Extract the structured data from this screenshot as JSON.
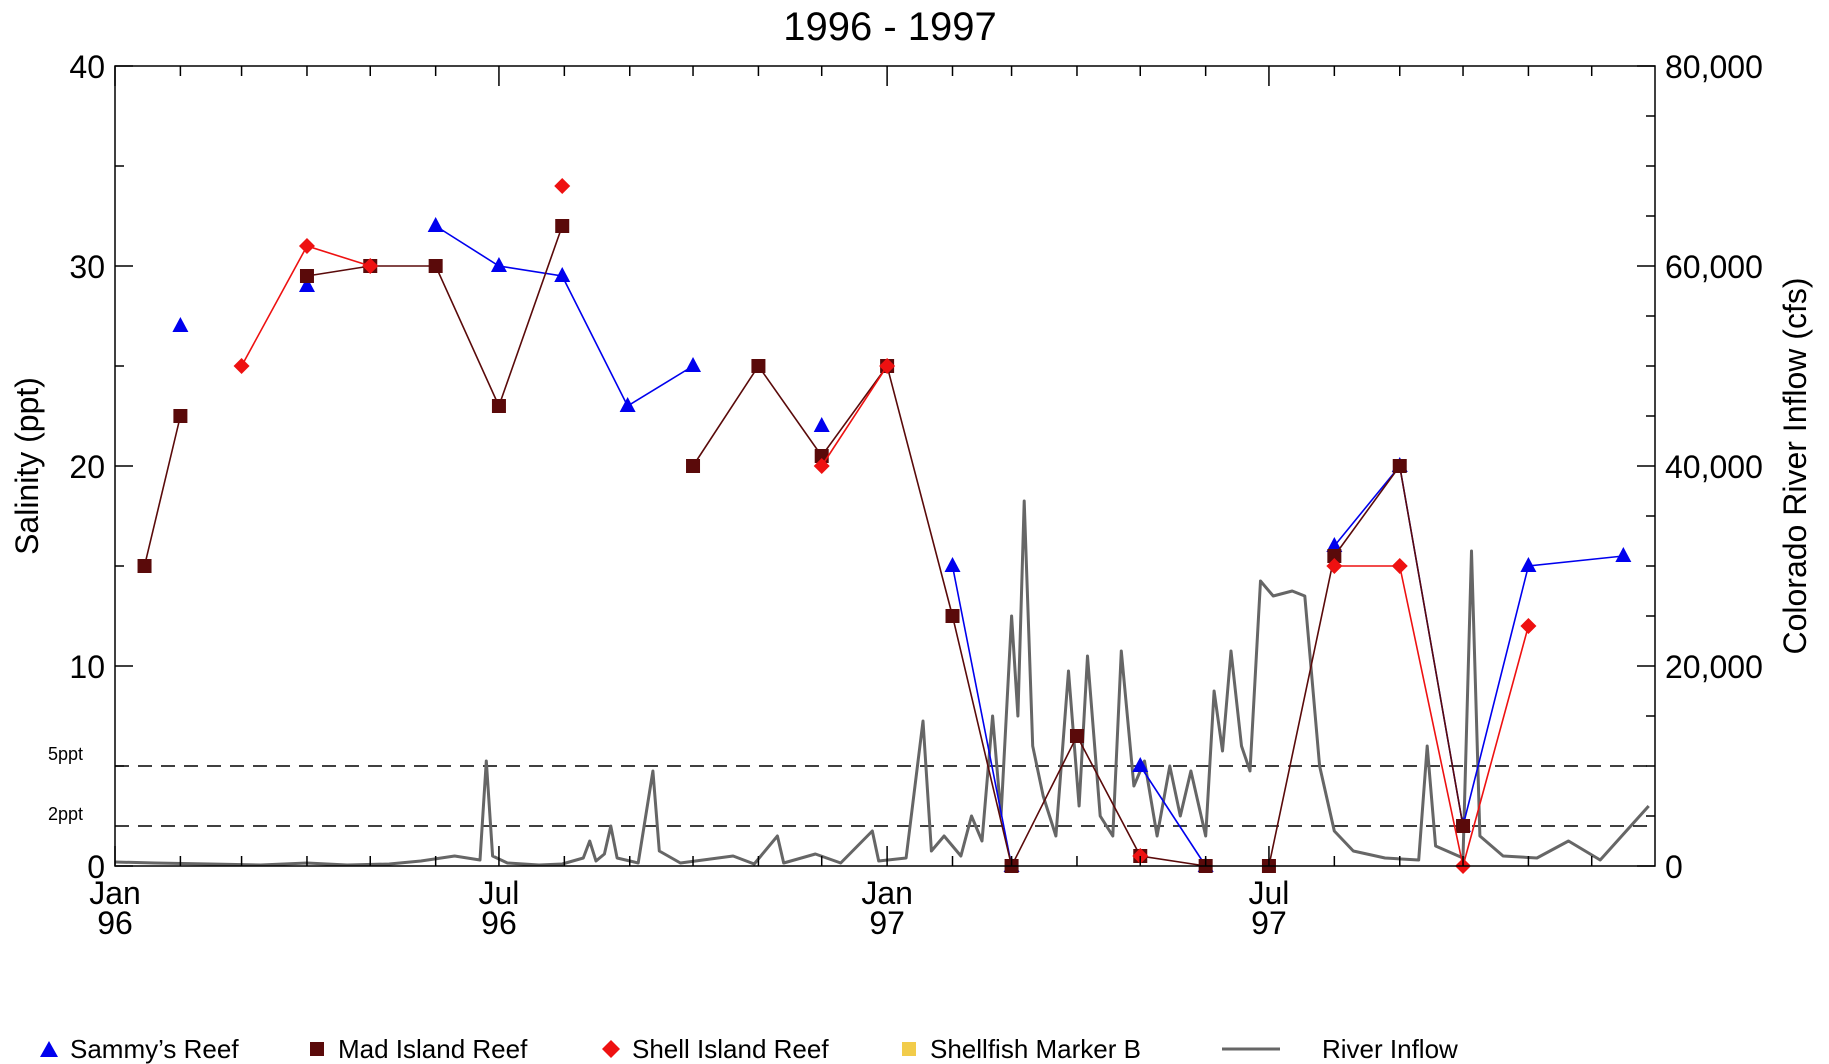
{
  "chart_data": {
    "type": "line",
    "title": "1996 - 1997",
    "ylabel": "Salinity (ppt)",
    "y2label": "Colorado River Inflow (cfs)",
    "ylim": [
      0,
      40
    ],
    "y2lim": [
      0,
      80000
    ],
    "xlim": [
      "1996-01-01",
      "1997-12-31"
    ],
    "y_ticks": [
      {
        "v": 0,
        "label": "0"
      },
      {
        "v": 10,
        "label": "10"
      },
      {
        "v": 20,
        "label": "20"
      },
      {
        "v": 30,
        "label": "30"
      },
      {
        "v": 40,
        "label": "40"
      }
    ],
    "y2_ticks": [
      {
        "v": 0,
        "label": "0"
      },
      {
        "v": 20000,
        "label": "20,000"
      },
      {
        "v": 40000,
        "label": "40,000"
      },
      {
        "v": 60000,
        "label": "60,000"
      },
      {
        "v": 80000,
        "label": "80,000"
      }
    ],
    "x_ticks": [
      {
        "date": "1996-01-01",
        "line1": "Jan",
        "line2": "96"
      },
      {
        "date": "1996-07-01",
        "line1": "Jul",
        "line2": "96"
      },
      {
        "date": "1997-01-01",
        "line1": "Jan",
        "line2": "97"
      },
      {
        "date": "1997-07-01",
        "line1": "Jul",
        "line2": "97"
      }
    ],
    "reference_lines": [
      {
        "label": "5ppt",
        "y": 5
      },
      {
        "label": "2ppt",
        "y": 2
      }
    ],
    "series": [
      {
        "name": "Sammy’s Reef",
        "marker": "triangle",
        "color": "#0000ee",
        "segments": [
          [
            {
              "x": "1996-02-01",
              "y": 27
            }
          ],
          [
            {
              "x": "1996-04-01",
              "y": 29
            }
          ],
          [
            {
              "x": "1996-06-01",
              "y": 32
            },
            {
              "x": "1996-07-01",
              "y": 30
            },
            {
              "x": "1996-07-31",
              "y": 29.5
            },
            {
              "x": "1996-08-31",
              "y": 23
            },
            {
              "x": "1996-10-01",
              "y": 25
            }
          ],
          [
            {
              "x": "1996-12-01",
              "y": 22
            }
          ],
          [
            {
              "x": "1997-02-01",
              "y": 15
            },
            {
              "x": "1997-03-01",
              "y": 0
            }
          ],
          [
            {
              "x": "1997-05-01",
              "y": 5
            },
            {
              "x": "1997-06-01",
              "y": 0
            }
          ],
          [
            {
              "x": "1997-08-01",
              "y": 16
            },
            {
              "x": "1997-09-01",
              "y": 20
            },
            {
              "x": "1997-10-01",
              "y": 2
            },
            {
              "x": "1997-11-01",
              "y": 15
            },
            {
              "x": "1997-12-16",
              "y": 15.5
            }
          ]
        ]
      },
      {
        "name": "Mad Island Reef",
        "marker": "square",
        "color": "#5a0a0a",
        "segments": [
          [
            {
              "x": "1996-01-15",
              "y": 15
            },
            {
              "x": "1996-02-01",
              "y": 22.5
            }
          ],
          [
            {
              "x": "1996-04-01",
              "y": 29.5
            },
            {
              "x": "1996-05-01",
              "y": 30
            },
            {
              "x": "1996-06-01",
              "y": 30
            },
            {
              "x": "1996-07-01",
              "y": 23
            },
            {
              "x": "1996-07-31",
              "y": 32
            }
          ],
          [
            {
              "x": "1996-10-01",
              "y": 20
            },
            {
              "x": "1996-11-01",
              "y": 25
            },
            {
              "x": "1996-12-01",
              "y": 20.5
            },
            {
              "x": "1997-01-01",
              "y": 25
            },
            {
              "x": "1997-02-01",
              "y": 12.5
            },
            {
              "x": "1997-03-01",
              "y": 0
            },
            {
              "x": "1997-04-01",
              "y": 6.5
            },
            {
              "x": "1997-05-01",
              "y": 0.5
            },
            {
              "x": "1997-06-01",
              "y": 0
            }
          ],
          [
            {
              "x": "1997-07-01",
              "y": 0
            },
            {
              "x": "1997-08-01",
              "y": 15.5
            },
            {
              "x": "1997-09-01",
              "y": 20
            },
            {
              "x": "1997-10-01",
              "y": 2
            }
          ]
        ]
      },
      {
        "name": "Shell Island Reef",
        "marker": "diamond",
        "color": "#ee1111",
        "segments": [
          [
            {
              "x": "1996-03-01",
              "y": 25
            },
            {
              "x": "1996-04-01",
              "y": 31
            },
            {
              "x": "1996-05-01",
              "y": 30
            }
          ],
          [
            {
              "x": "1996-07-31",
              "y": 34
            }
          ],
          [
            {
              "x": "1996-12-01",
              "y": 20
            },
            {
              "x": "1997-01-01",
              "y": 25
            }
          ],
          [
            {
              "x": "1997-05-01",
              "y": 0.5
            }
          ],
          [
            {
              "x": "1997-08-01",
              "y": 15
            },
            {
              "x": "1997-09-01",
              "y": 15
            },
            {
              "x": "1997-10-01",
              "y": 0
            },
            {
              "x": "1997-11-01",
              "y": 12
            }
          ]
        ]
      },
      {
        "name": "Shellfish Marker B",
        "marker": "square",
        "color": "#f2cc4a",
        "segments": []
      },
      {
        "name": "River Inflow",
        "marker": "line",
        "color": "#666666",
        "axis": "y2",
        "points": [
          {
            "x": "1996-01-01",
            "y": 400
          },
          {
            "x": "1996-01-20",
            "y": 300
          },
          {
            "x": "1996-02-15",
            "y": 200
          },
          {
            "x": "1996-03-10",
            "y": 100
          },
          {
            "x": "1996-04-01",
            "y": 300
          },
          {
            "x": "1996-04-20",
            "y": 100
          },
          {
            "x": "1996-05-10",
            "y": 200
          },
          {
            "x": "1996-05-25",
            "y": 500
          },
          {
            "x": "1996-06-10",
            "y": 1000
          },
          {
            "x": "1996-06-22",
            "y": 600
          },
          {
            "x": "1996-06-25",
            "y": 10500
          },
          {
            "x": "1996-06-28",
            "y": 1000
          },
          {
            "x": "1996-07-05",
            "y": 300
          },
          {
            "x": "1996-07-20",
            "y": 100
          },
          {
            "x": "1996-07-31",
            "y": 200
          },
          {
            "x": "1996-08-10",
            "y": 800
          },
          {
            "x": "1996-08-13",
            "y": 2500
          },
          {
            "x": "1996-08-16",
            "y": 500
          },
          {
            "x": "1996-08-20",
            "y": 1200
          },
          {
            "x": "1996-08-23",
            "y": 4000
          },
          {
            "x": "1996-08-26",
            "y": 800
          },
          {
            "x": "1996-09-05",
            "y": 300
          },
          {
            "x": "1996-09-12",
            "y": 9500
          },
          {
            "x": "1996-09-15",
            "y": 1500
          },
          {
            "x": "1996-09-25",
            "y": 300
          },
          {
            "x": "1996-10-20",
            "y": 1000
          },
          {
            "x": "1996-10-30",
            "y": 200
          },
          {
            "x": "1996-11-10",
            "y": 3000
          },
          {
            "x": "1996-11-13",
            "y": 300
          },
          {
            "x": "1996-11-28",
            "y": 1200
          },
          {
            "x": "1996-12-10",
            "y": 300
          },
          {
            "x": "1996-12-25",
            "y": 3500
          },
          {
            "x": "1996-12-28",
            "y": 500
          },
          {
            "x": "1997-01-10",
            "y": 800
          },
          {
            "x": "1997-01-18",
            "y": 14500
          },
          {
            "x": "1997-01-22",
            "y": 1500
          },
          {
            "x": "1997-01-28",
            "y": 3000
          },
          {
            "x": "1997-02-05",
            "y": 1000
          },
          {
            "x": "1997-02-10",
            "y": 5000
          },
          {
            "x": "1997-02-15",
            "y": 2500
          },
          {
            "x": "1997-02-20",
            "y": 15000
          },
          {
            "x": "1997-02-24",
            "y": 5000
          },
          {
            "x": "1997-03-01",
            "y": 25000
          },
          {
            "x": "1997-03-04",
            "y": 15000
          },
          {
            "x": "1997-03-07",
            "y": 36500
          },
          {
            "x": "1997-03-11",
            "y": 12000
          },
          {
            "x": "1997-03-16",
            "y": 7000
          },
          {
            "x": "1997-03-22",
            "y": 3000
          },
          {
            "x": "1997-03-28",
            "y": 19500
          },
          {
            "x": "1997-04-02",
            "y": 6000
          },
          {
            "x": "1997-04-06",
            "y": 21000
          },
          {
            "x": "1997-04-12",
            "y": 5000
          },
          {
            "x": "1997-04-18",
            "y": 3000
          },
          {
            "x": "1997-04-22",
            "y": 21500
          },
          {
            "x": "1997-04-28",
            "y": 8000
          },
          {
            "x": "1997-05-03",
            "y": 10500
          },
          {
            "x": "1997-05-09",
            "y": 3000
          },
          {
            "x": "1997-05-15",
            "y": 10000
          },
          {
            "x": "1997-05-20",
            "y": 5000
          },
          {
            "x": "1997-05-25",
            "y": 9500
          },
          {
            "x": "1997-06-01",
            "y": 3000
          },
          {
            "x": "1997-06-05",
            "y": 17500
          },
          {
            "x": "1997-06-09",
            "y": 11500
          },
          {
            "x": "1997-06-13",
            "y": 21500
          },
          {
            "x": "1997-06-18",
            "y": 12000
          },
          {
            "x": "1997-06-22",
            "y": 9500
          },
          {
            "x": "1997-06-27",
            "y": 28500
          },
          {
            "x": "1997-07-03",
            "y": 27000
          },
          {
            "x": "1997-07-12",
            "y": 27500
          },
          {
            "x": "1997-07-18",
            "y": 27000
          },
          {
            "x": "1997-07-25",
            "y": 10000
          },
          {
            "x": "1997-08-01",
            "y": 3500
          },
          {
            "x": "1997-08-10",
            "y": 1500
          },
          {
            "x": "1997-08-25",
            "y": 800
          },
          {
            "x": "1997-09-10",
            "y": 600
          },
          {
            "x": "1997-09-14",
            "y": 12000
          },
          {
            "x": "1997-09-18",
            "y": 2000
          },
          {
            "x": "1997-10-01",
            "y": 800
          },
          {
            "x": "1997-10-05",
            "y": 31500
          },
          {
            "x": "1997-10-09",
            "y": 3000
          },
          {
            "x": "1997-10-20",
            "y": 1000
          },
          {
            "x": "1997-11-05",
            "y": 800
          },
          {
            "x": "1997-11-20",
            "y": 2500
          },
          {
            "x": "1997-12-05",
            "y": 600
          },
          {
            "x": "1997-12-28",
            "y": 6000
          }
        ]
      }
    ]
  }
}
